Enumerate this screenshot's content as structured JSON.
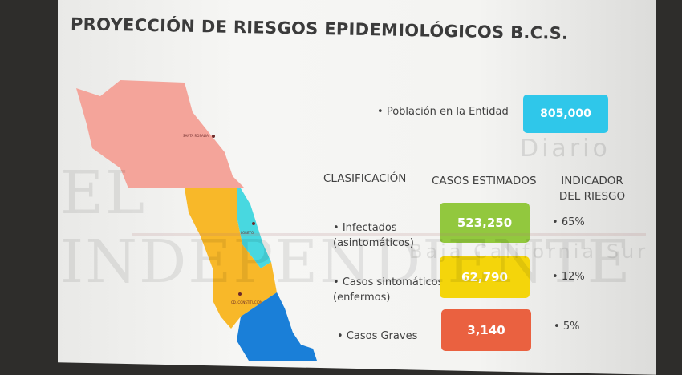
{
  "slide": {
    "title": "PROYECCIÓN DE RIESGOS EPIDEMIOLÓGICOS B.C.S.",
    "population": {
      "label": "Población  en la Entidad",
      "value": "805,000",
      "color": "#2fc7ea"
    },
    "headers": {
      "classification": "CLASIFICACIÓN",
      "estimated_cases": "CASOS ESTIMADOS",
      "risk_indicator": "INDICADOR DEL RIESGO"
    },
    "rows": [
      {
        "label1": "Infectados",
        "label2": "(asintomáticos)",
        "value": "523,250",
        "risk": "65%",
        "color": "#92c83e"
      },
      {
        "label1": "Casos sintomáticos",
        "label2": "(enfermos)",
        "value": "62,790",
        "risk": "12%",
        "color": "#f4d50b"
      },
      {
        "label1": "Casos Graves",
        "label2": "",
        "value": "3,140",
        "risk": "5%",
        "color": "#ea6140"
      }
    ],
    "map": {
      "cities": [
        "SANTA ROSALIA",
        "LORETO",
        "CD. CONSTITUCION"
      ],
      "region_colors": {
        "mulege": "#f4a49a",
        "comondu": "#f8b829",
        "loreto": "#48d8e0",
        "la_paz": "#1a7fd8"
      }
    }
  },
  "watermark": {
    "top": "Diario",
    "main": "EL INDEPENDIENTE",
    "sub": "Baja California Sur"
  }
}
